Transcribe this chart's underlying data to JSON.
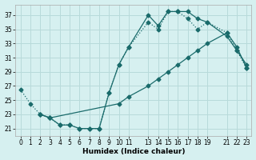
{
  "xlabel": "Humidex (Indice chaleur)",
  "bg_color": "#d6f0f0",
  "grid_color": "#b8dada",
  "line_color": "#1a6b6b",
  "xlim": [
    -0.5,
    23.5
  ],
  "ylim": [
    20.0,
    38.5
  ],
  "xticks": [
    0,
    1,
    2,
    3,
    4,
    5,
    6,
    7,
    8,
    9,
    10,
    11,
    13,
    14,
    15,
    16,
    17,
    18,
    19,
    21,
    22,
    23
  ],
  "yticks": [
    21,
    23,
    25,
    27,
    29,
    31,
    33,
    35,
    37
  ],
  "line1_x": [
    0,
    1,
    2,
    3,
    4,
    5,
    6,
    7,
    8,
    9,
    10,
    11,
    13,
    14,
    15,
    16,
    17,
    18,
    19,
    21,
    22,
    23
  ],
  "line1_y": [
    26.5,
    24.5,
    23.0,
    22.5,
    21.5,
    21.5,
    21.0,
    21.0,
    21.0,
    26.0,
    30.0,
    32.5,
    36.0,
    35.0,
    37.5,
    37.5,
    36.5,
    35.0,
    36.0,
    34.5,
    32.0,
    29.5
  ],
  "line2_x": [
    2,
    3,
    10,
    11,
    13,
    14,
    15,
    16,
    17,
    18,
    19,
    21,
    22,
    23
  ],
  "line2_y": [
    23.0,
    22.5,
    24.5,
    25.5,
    27.0,
    28.0,
    29.0,
    30.0,
    31.0,
    32.0,
    33.0,
    34.5,
    32.5,
    29.5
  ],
  "line3_x": [
    2,
    3,
    4,
    5,
    6,
    7,
    8,
    9,
    10,
    11,
    13,
    14,
    15,
    16,
    17,
    18,
    19,
    21,
    22,
    23
  ],
  "line3_y": [
    23.0,
    22.5,
    21.5,
    21.5,
    21.0,
    21.0,
    21.0,
    26.0,
    30.0,
    32.5,
    37.0,
    35.5,
    37.5,
    37.5,
    37.5,
    36.5,
    36.0,
    34.0,
    32.0,
    30.0
  ]
}
